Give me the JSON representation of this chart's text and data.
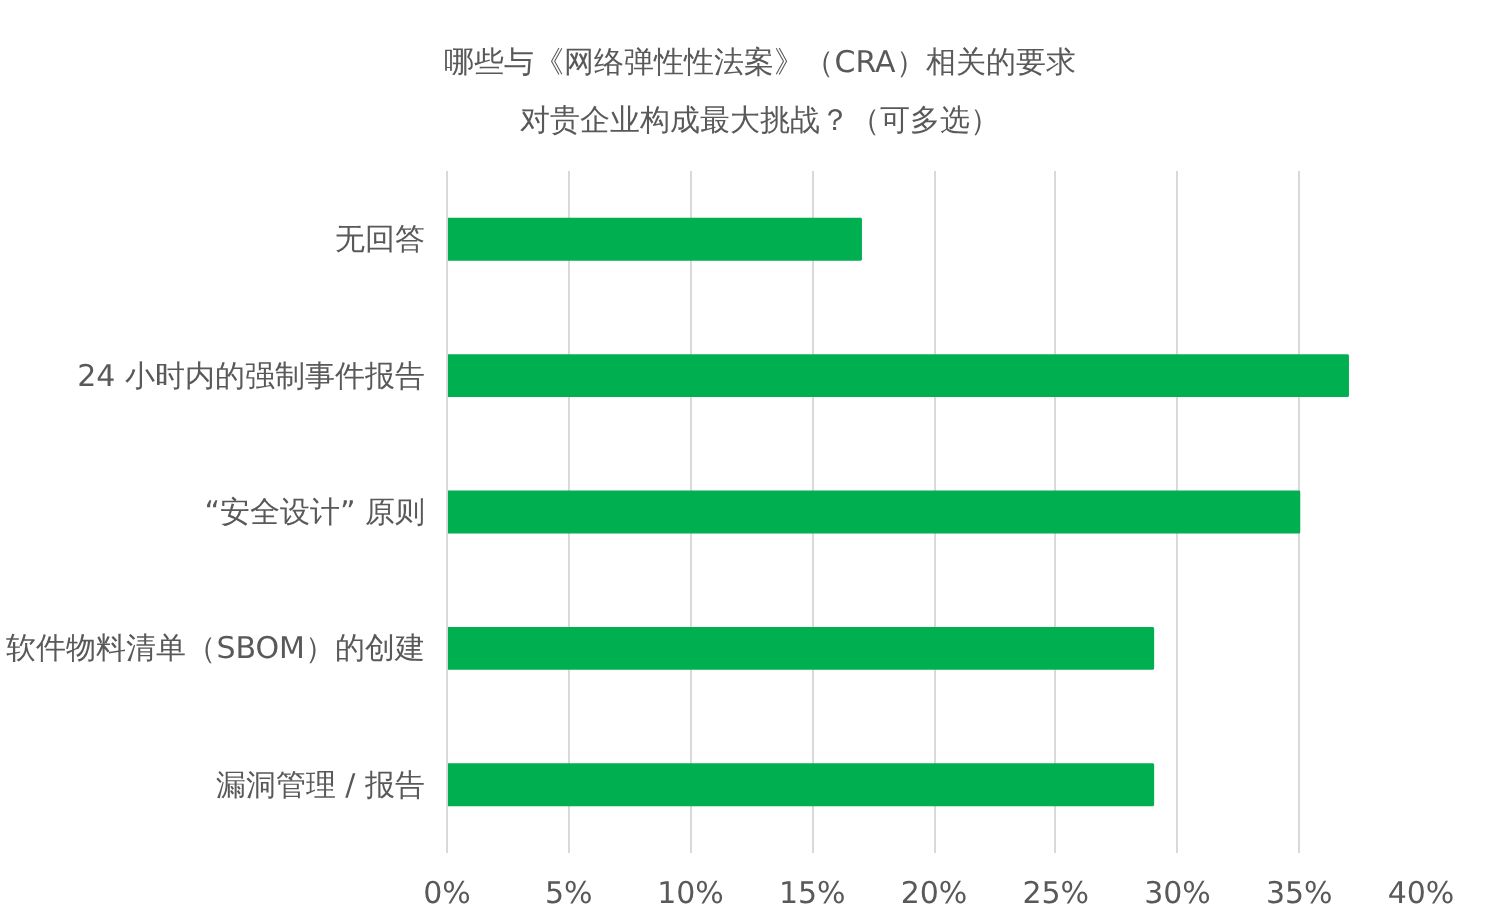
{
  "chart_data": {
    "type": "bar",
    "orientation": "horizontal",
    "title": "哪些与《网络弹性性法案》（CRA）相关的要求对贵企业构成最大挑战？（可多选）",
    "categories": [
      "无回答",
      "24 小时内的强制事件报告",
      "“安全设计” 原则",
      "软件物料清单（SBOM）的创建",
      "漏洞管理 / 报告"
    ],
    "values": [
      17,
      37,
      35,
      29,
      29
    ],
    "color": "#00b050",
    "xlim": [
      0,
      40
    ],
    "xticks": [
      {
        "value": 0,
        "label": "0%"
      },
      {
        "value": 5,
        "label": "5%"
      },
      {
        "value": 10,
        "label": "10%"
      },
      {
        "value": 15,
        "label": "15%"
      },
      {
        "value": 20,
        "label": "20%"
      },
      {
        "value": 25,
        "label": "25%"
      },
      {
        "value": 30,
        "label": "30%"
      },
      {
        "value": 35,
        "label": "35%"
      },
      {
        "value": 40,
        "label": "40%"
      }
    ],
    "grid": "x"
  }
}
